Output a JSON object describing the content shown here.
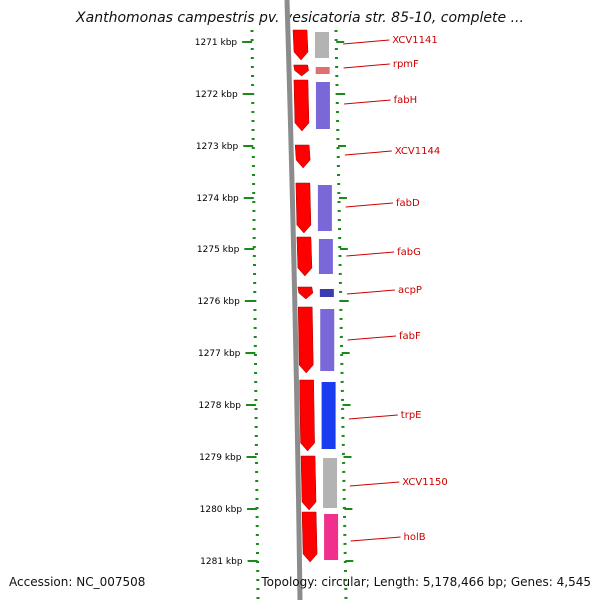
{
  "title": "Xanthomonas campestris pv. vesicatoria str. 85-10, complete ...",
  "ruler": {
    "ticks": [
      "1271 kbp",
      "1272 kbp",
      "1273 kbp",
      "1274 kbp",
      "1275 kbp",
      "1276 kbp",
      "1277 kbp",
      "1278 kbp",
      "1279 kbp",
      "1280 kbp",
      "1281 kbp"
    ]
  },
  "genes": [
    {
      "label": "XCV1141",
      "strand": "forward",
      "track_color": "#b3b3b3"
    },
    {
      "label": "rpmF",
      "strand": "forward",
      "track_color": "#e07070"
    },
    {
      "label": "fabH",
      "strand": "forward",
      "track_color": "#7b68d8"
    },
    {
      "label": "XCV1144",
      "strand": "forward",
      "track_color": null
    },
    {
      "label": "fabD",
      "strand": "forward",
      "track_color": "#7b68d8"
    },
    {
      "label": "fabG",
      "strand": "forward",
      "track_color": "#7b68d8"
    },
    {
      "label": "acpP",
      "strand": "forward",
      "track_color": "#3b3bb0"
    },
    {
      "label": "fabF",
      "strand": "forward",
      "track_color": "#7b68d8"
    },
    {
      "label": "trpE",
      "strand": "forward",
      "track_color": "#1a3cf0"
    },
    {
      "label": "XCV1150",
      "strand": "forward",
      "track_color": "#b3b3b3"
    },
    {
      "label": "holB",
      "strand": "forward",
      "track_color": "#f0308c"
    }
  ],
  "colors": {
    "gene_arrow": "#ff0000",
    "ruler": "#1a8a1a",
    "backbone": "#8c8c8c",
    "label": "#cc0000"
  },
  "footer": {
    "accession": "Accession: NC_007508",
    "summary": "Topology: circular; Length: 5,178,466 bp; Genes: 4,545"
  }
}
